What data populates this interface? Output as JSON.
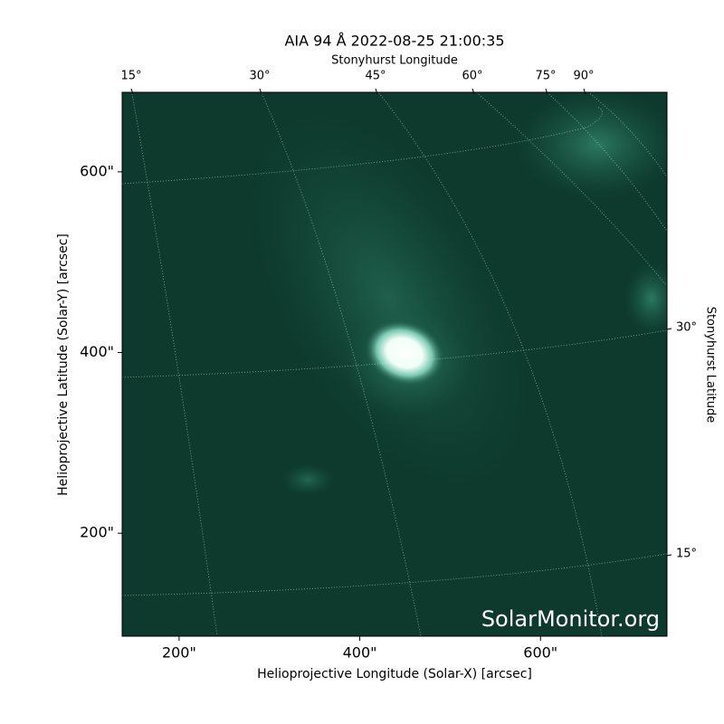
{
  "chart_data": {
    "type": "image",
    "title": "AIA 94 Å 2022-08-25 21:00:35",
    "xlabel": "Helioprojective Longitude (Solar-X) [arcsec]",
    "ylabel": "Helioprojective Latitude (Solar-Y) [arcsec]",
    "xlim": [
      137,
      740
    ],
    "ylim": [
      86,
      688
    ],
    "xticks": [
      {
        "value": 200,
        "label": "200\""
      },
      {
        "value": 400,
        "label": "400\""
      },
      {
        "value": 600,
        "label": "600\""
      }
    ],
    "yticks": [
      {
        "value": 200,
        "label": "200\""
      },
      {
        "value": 400,
        "label": "400\""
      },
      {
        "value": 600,
        "label": "600\""
      }
    ],
    "top_axis": {
      "label": "Stonyhurst Longitude",
      "ticks": [
        "15°",
        "30°",
        "45°",
        "60°",
        "75°",
        "90°"
      ]
    },
    "right_axis": {
      "label": "Stonyhurst Latitude",
      "ticks": [
        "30°",
        "15°"
      ]
    },
    "watermark": "SolarMonitor.org"
  }
}
